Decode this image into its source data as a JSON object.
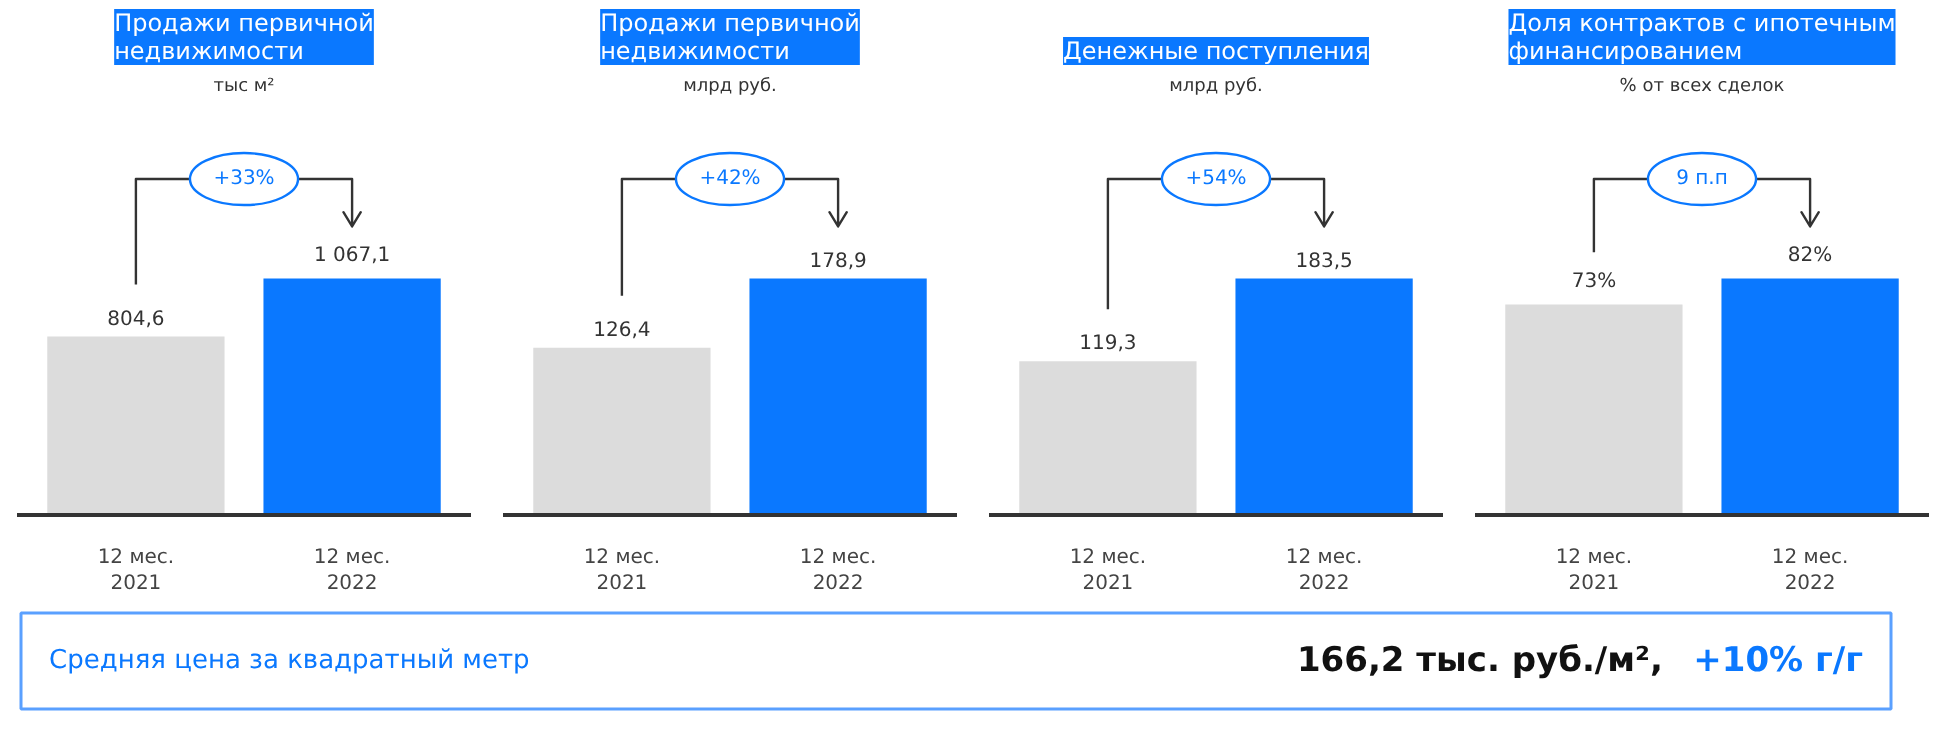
{
  "chart_data": [
    {
      "type": "bar",
      "title": "Продажи первичной\nнедвижимости",
      "subtitle": "тыс м²",
      "categories": [
        "12 мес.\n2021",
        "12 мес.\n2022"
      ],
      "values": [
        804.6,
        1067.1
      ],
      "colors": [
        "#dcdcdc",
        "#0a78ff"
      ],
      "value_labels": [
        "804,6",
        "1 067,1"
      ],
      "annotations": [
        "+33%"
      ],
      "tick_labels": "x"
    },
    {
      "type": "bar",
      "title": "Продажи первичной\nнедвижимости",
      "subtitle": "млрд руб.",
      "categories": [
        "12 мес.\n2021",
        "12 мес.\n2022"
      ],
      "values": [
        126.4,
        178.9
      ],
      "colors": [
        "#dcdcdc",
        "#0a78ff"
      ],
      "value_labels": [
        "126,4",
        "178,9"
      ],
      "annotations": [
        "+42%"
      ],
      "tick_labels": "x"
    },
    {
      "type": "bar",
      "title": "Денежные поступления",
      "subtitle": "млрд руб.",
      "categories": [
        "12 мес.\n2021",
        "12 мес.\n2022"
      ],
      "values": [
        119.3,
        183.5
      ],
      "colors": [
        "#dcdcdc",
        "#0a78ff"
      ],
      "value_labels": [
        "119,3",
        "183,5"
      ],
      "annotations": [
        "+54%"
      ],
      "tick_labels": "x"
    },
    {
      "type": "bar",
      "title": "Доля контрактов с ипотечным\nфинансированием",
      "subtitle": "% от всех сделок",
      "categories": [
        "12 мес.\n2021",
        "12 мес.\n2022"
      ],
      "values": [
        73,
        82
      ],
      "colors": [
        "#dcdcdc",
        "#0a78ff"
      ],
      "value_labels": [
        "73%",
        "82%"
      ],
      "annotations": [
        "9 п.п"
      ],
      "tick_labels": "x"
    },
    {
      "type": "other",
      "title": "Средняя цена за квадратный метр",
      "annotations": [
        "166,2 тыс. руб./м²,",
        "+10% г/г"
      ]
    }
  ]
}
